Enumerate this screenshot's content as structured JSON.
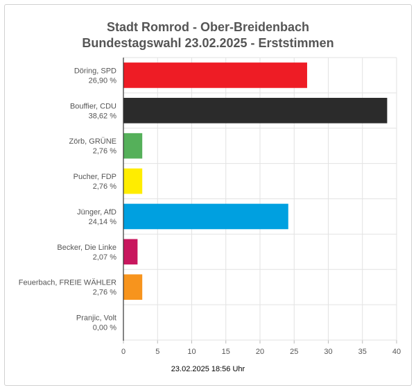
{
  "chart_data": {
    "type": "bar",
    "orientation": "horizontal",
    "title_line1": "Stadt Romrod - Ober-Breidenbach",
    "title_line2": "Bundestagswahl 23.02.2025  - Erststimmen",
    "categories": [
      {
        "name": "Döring, SPD",
        "value_label": "26,90 %"
      },
      {
        "name": "Bouffier, CDU",
        "value_label": "38,62 %"
      },
      {
        "name": "Zörb, GRÜNE",
        "value_label": "2,76 %"
      },
      {
        "name": "Pucher, FDP",
        "value_label": "2,76 %"
      },
      {
        "name": "Jünger, AfD",
        "value_label": "24,14 %"
      },
      {
        "name": "Becker, Die Linke",
        "value_label": "2,07 %"
      },
      {
        "name": "Feuerbach, FREIE WÄHLER",
        "value_label": "2,76 %"
      },
      {
        "name": "Pranjic, Volt",
        "value_label": "0,00 %"
      }
    ],
    "values": [
      26.9,
      38.62,
      2.76,
      2.76,
      24.14,
      2.07,
      2.76,
      0.0
    ],
    "colors": [
      "#ee1c25",
      "#2b2b2b",
      "#55b05a",
      "#ffed00",
      "#00a0e0",
      "#c8175e",
      "#f7941d",
      "#7b3fa0"
    ],
    "xlim": [
      0,
      40
    ],
    "xticks": [
      "0",
      "5",
      "10",
      "15",
      "20",
      "25",
      "30",
      "35",
      "40"
    ],
    "grid": true,
    "footer": "23.02.2025 18:56 Uhr"
  }
}
